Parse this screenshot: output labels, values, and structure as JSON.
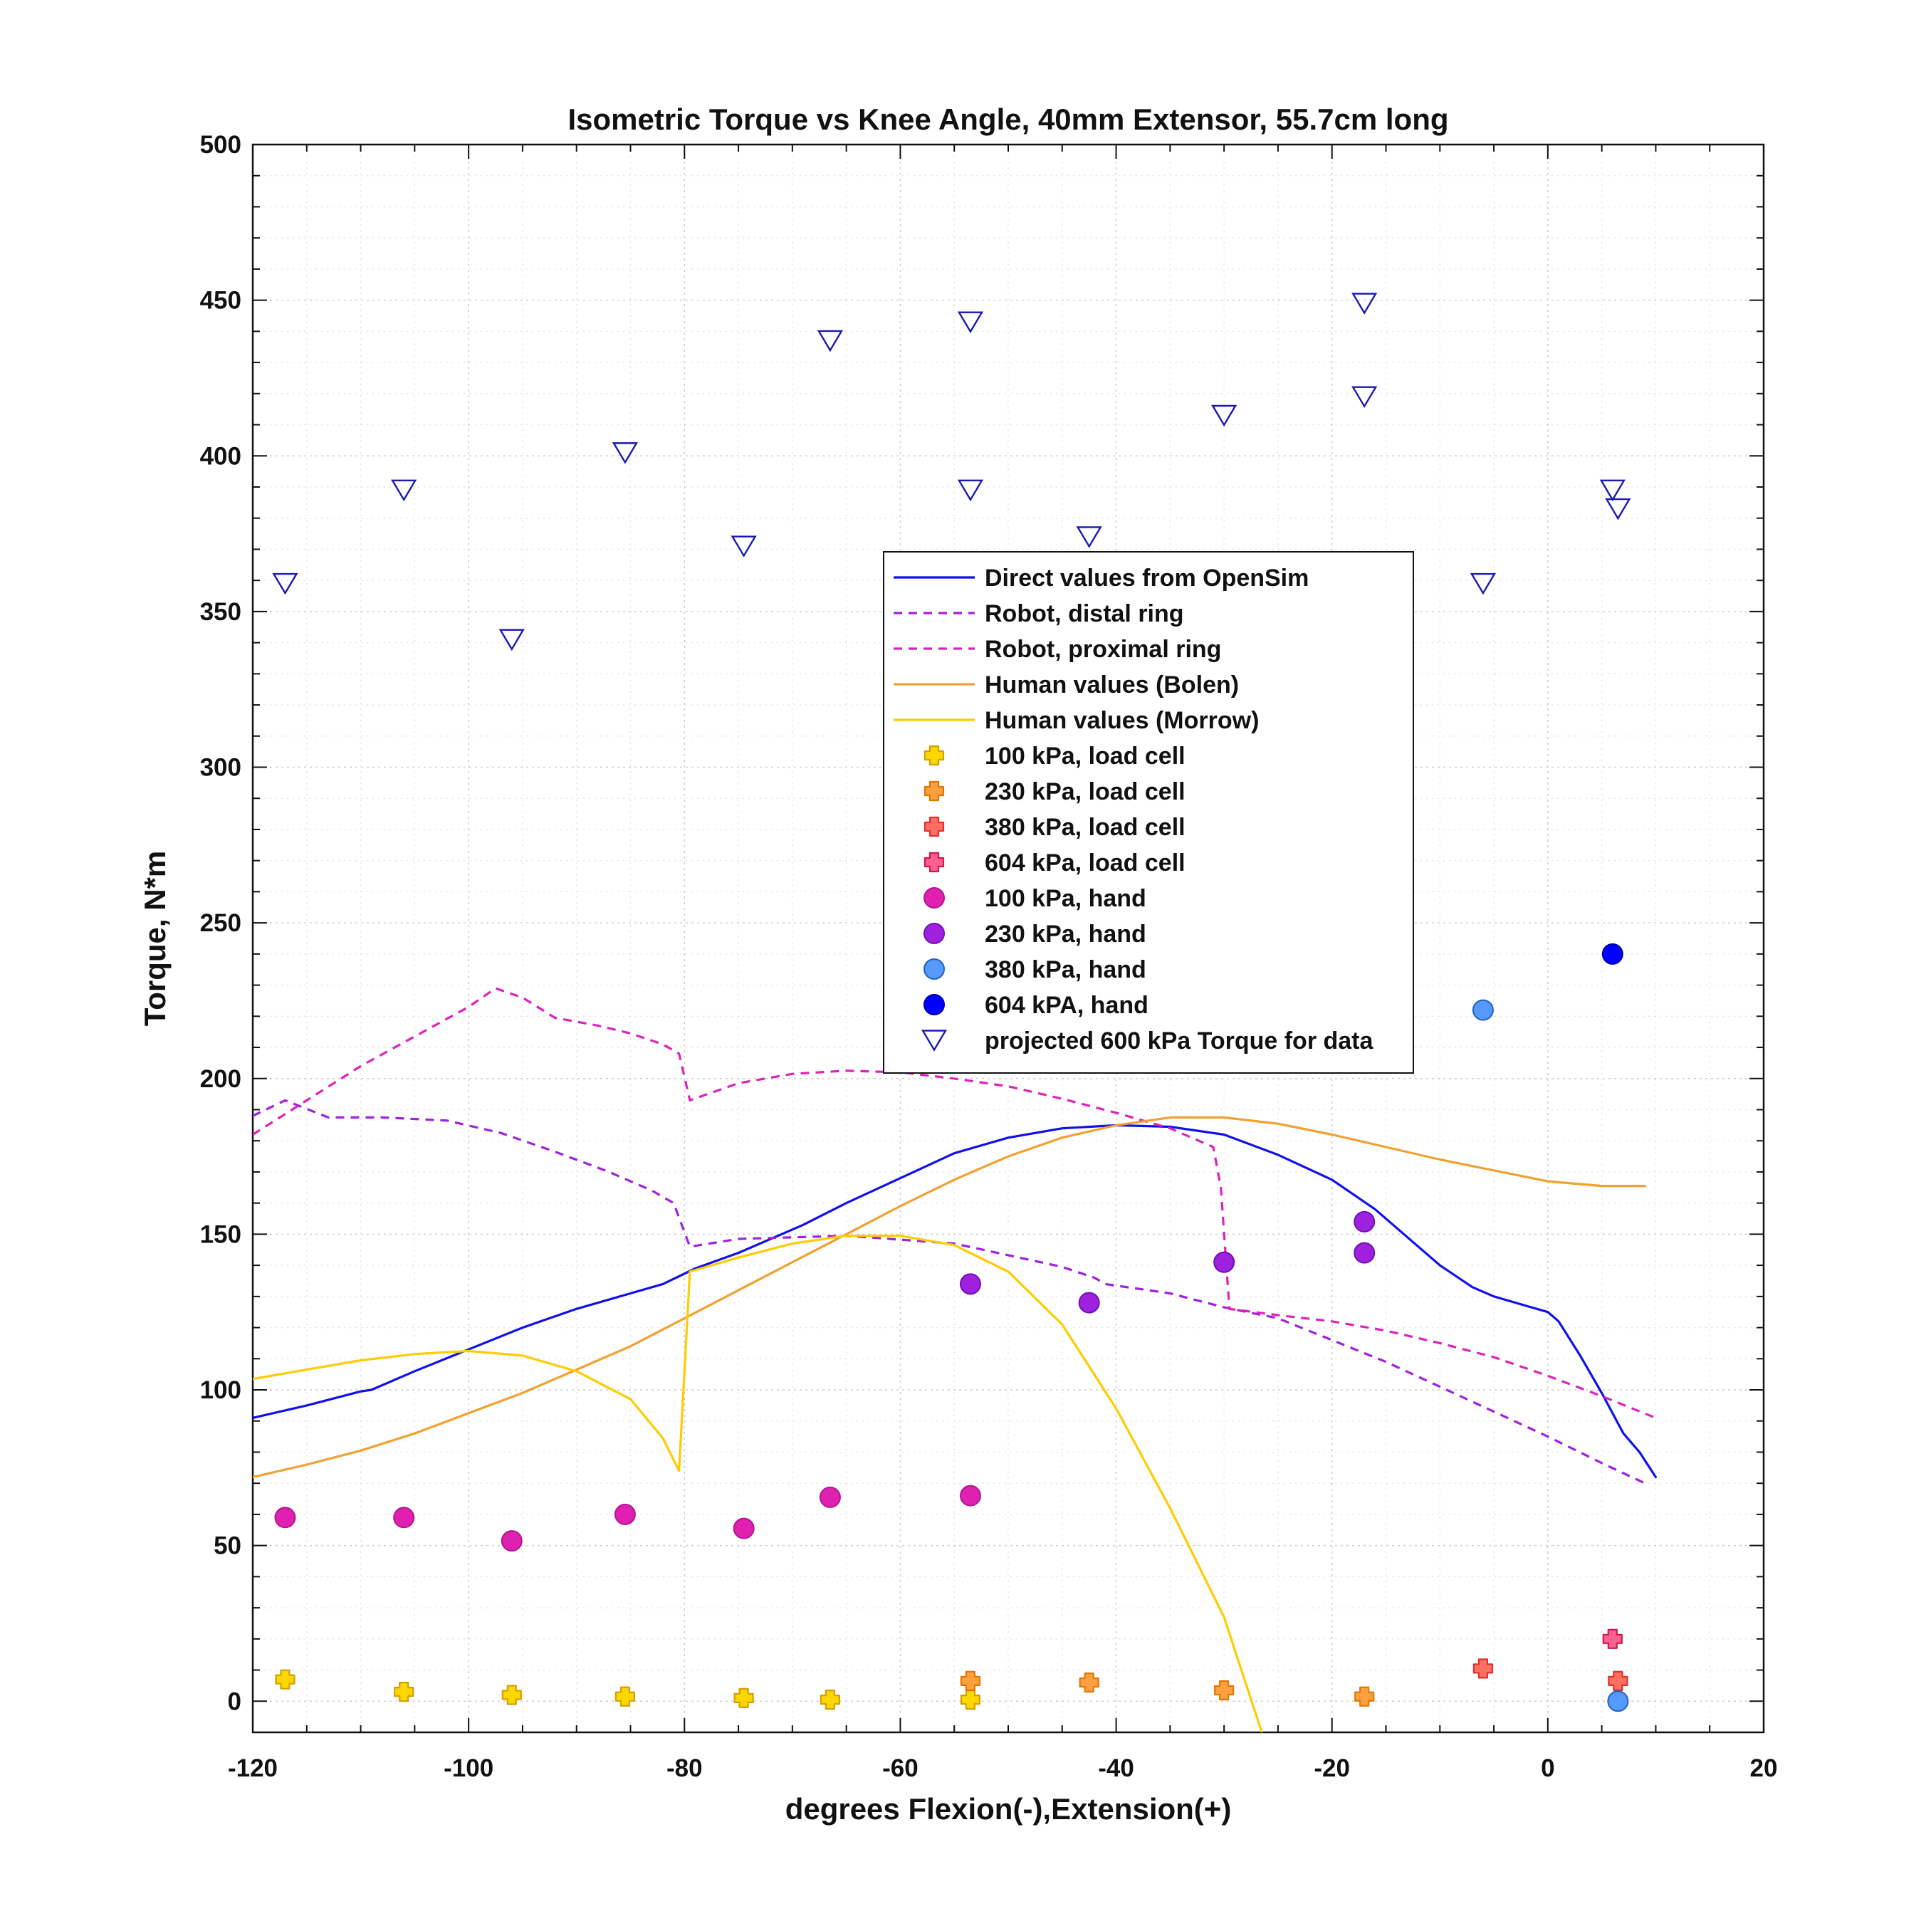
{
  "chart_data": {
    "type": "line",
    "title": "Isometric Torque vs Knee Angle, 40mm Extensor, 55.7cm long",
    "xlabel": "degrees Flexion(-),Extension(+)",
    "ylabel": "Torque, N*m",
    "xlim": [
      -120,
      20
    ],
    "ylim": [
      -10,
      500
    ],
    "xticks": [
      -120,
      -100,
      -80,
      -60,
      -40,
      -20,
      0,
      20
    ],
    "yticks": [
      0,
      50,
      100,
      150,
      200,
      250,
      300,
      350,
      400,
      450,
      500
    ],
    "xtick_labels": [
      "-120",
      "-100",
      "-80",
      "-60",
      "-40",
      "-20",
      "0",
      "20"
    ],
    "ytick_labels": [
      "0",
      "50",
      "100",
      "150",
      "200",
      "250",
      "300",
      "350",
      "400",
      "450",
      "500"
    ],
    "grid": true,
    "minor_grid": true,
    "legend_position": "center-right",
    "series": [
      {
        "name": "Direct values from OpenSim",
        "kind": "line",
        "style": "solid",
        "color": "#1010ee",
        "points": [
          [
            -120,
            91
          ],
          [
            -115,
            95
          ],
          [
            -110,
            99.5
          ],
          [
            -109,
            100
          ],
          [
            -105,
            106
          ],
          [
            -100,
            113
          ],
          [
            -95,
            120
          ],
          [
            -90,
            126
          ],
          [
            -85,
            131
          ],
          [
            -82,
            134
          ],
          [
            -79,
            139
          ],
          [
            -75,
            144
          ],
          [
            -69,
            153
          ],
          [
            -65,
            160
          ],
          [
            -60,
            168
          ],
          [
            -55,
            176
          ],
          [
            -50,
            181
          ],
          [
            -45,
            184
          ],
          [
            -40,
            185
          ],
          [
            -35,
            184.5
          ],
          [
            -30,
            182
          ],
          [
            -25,
            175.5
          ],
          [
            -20,
            167.5
          ],
          [
            -16,
            158
          ],
          [
            -12,
            146
          ],
          [
            -10,
            140
          ],
          [
            -7,
            133
          ],
          [
            -5,
            130
          ],
          [
            -2,
            127
          ],
          [
            0,
            125
          ],
          [
            1,
            122
          ],
          [
            3,
            111
          ],
          [
            5,
            99
          ],
          [
            7,
            86
          ],
          [
            8.5,
            80
          ],
          [
            10,
            72
          ]
        ]
      },
      {
        "name": "Robot, distal ring",
        "kind": "line",
        "style": "dashed",
        "color": "#a020e0",
        "points": [
          [
            -120,
            188
          ],
          [
            -117,
            193
          ],
          [
            -113,
            187.5
          ],
          [
            -108,
            187.5
          ],
          [
            -102,
            186.5
          ],
          [
            -97,
            182.5
          ],
          [
            -92,
            176.5
          ],
          [
            -87,
            170
          ],
          [
            -83,
            164
          ],
          [
            -81,
            160
          ],
          [
            -79.5,
            146
          ],
          [
            -75,
            148.5
          ],
          [
            -65,
            149.5
          ],
          [
            -55,
            147
          ],
          [
            -45,
            139.5
          ],
          [
            -42,
            136
          ],
          [
            -41,
            134
          ],
          [
            -35,
            131
          ],
          [
            -30,
            126.5
          ],
          [
            -25,
            123
          ],
          [
            -20,
            116
          ],
          [
            -15,
            109
          ],
          [
            -10,
            101
          ],
          [
            -5,
            93
          ],
          [
            0,
            85
          ],
          [
            5,
            76.5
          ],
          [
            9,
            70
          ]
        ]
      },
      {
        "name": "Robot, proximal ring",
        "kind": "line",
        "style": "dashed",
        "color": "#dd22bb",
        "points": [
          [
            -120,
            182
          ],
          [
            -115,
            193
          ],
          [
            -110,
            204
          ],
          [
            -105,
            213.5
          ],
          [
            -100,
            223
          ],
          [
            -97.5,
            229
          ],
          [
            -95,
            226
          ],
          [
            -92,
            219.5
          ],
          [
            -88,
            217
          ],
          [
            -85,
            214.5
          ],
          [
            -82,
            211
          ],
          [
            -80.5,
            208
          ],
          [
            -79.5,
            193
          ],
          [
            -75,
            198.5
          ],
          [
            -70,
            201.5
          ],
          [
            -65,
            202.5
          ],
          [
            -60,
            202
          ],
          [
            -55,
            200
          ],
          [
            -50,
            197.5
          ],
          [
            -45,
            193.5
          ],
          [
            -40,
            189
          ],
          [
            -35,
            184
          ],
          [
            -31,
            178
          ],
          [
            -30.3,
            165
          ],
          [
            -29.5,
            126
          ],
          [
            -25,
            124
          ],
          [
            -20,
            122
          ],
          [
            -15,
            119
          ],
          [
            -10,
            115
          ],
          [
            -5,
            110.5
          ],
          [
            0,
            104.5
          ],
          [
            5,
            98
          ],
          [
            10,
            91
          ]
        ]
      },
      {
        "name": "Human values (Bolen)",
        "kind": "line",
        "style": "solid",
        "color": "#f2a030",
        "points": [
          [
            -120,
            72
          ],
          [
            -115,
            76
          ],
          [
            -110,
            80.5
          ],
          [
            -105,
            86
          ],
          [
            -100,
            92.5
          ],
          [
            -95,
            99
          ],
          [
            -90,
            106.5
          ],
          [
            -85,
            114
          ],
          [
            -80,
            123
          ],
          [
            -75,
            132
          ],
          [
            -70,
            141
          ],
          [
            -65,
            150
          ],
          [
            -60,
            159
          ],
          [
            -55,
            167.5
          ],
          [
            -50,
            175
          ],
          [
            -45,
            181
          ],
          [
            -40,
            185
          ],
          [
            -35,
            187.5
          ],
          [
            -30,
            187.5
          ],
          [
            -25,
            185.5
          ],
          [
            -20,
            182
          ],
          [
            -15,
            178
          ],
          [
            -10,
            174
          ],
          [
            -5,
            170.5
          ],
          [
            0,
            167
          ],
          [
            5,
            165.5
          ],
          [
            9,
            165.5
          ]
        ]
      },
      {
        "name": "Human values (Morrow)",
        "kind": "line",
        "style": "solid",
        "color": "#ffcc00",
        "points": [
          [
            -120,
            103.5
          ],
          [
            -115,
            106.5
          ],
          [
            -110,
            109.5
          ],
          [
            -105,
            111.5
          ],
          [
            -100,
            112.5
          ],
          [
            -95,
            111
          ],
          [
            -90,
            106
          ],
          [
            -85,
            97
          ],
          [
            -82,
            84.5
          ],
          [
            -80.5,
            74
          ],
          [
            -79.5,
            138
          ],
          [
            -75,
            142.5
          ],
          [
            -70,
            147
          ],
          [
            -65,
            149.5
          ],
          [
            -60,
            149.5
          ],
          [
            -55,
            146.5
          ],
          [
            -50,
            138
          ],
          [
            -45,
            121
          ],
          [
            -40,
            94
          ],
          [
            -35,
            62
          ],
          [
            -30,
            27
          ],
          [
            -26.5,
            -10
          ]
        ]
      },
      {
        "name": "100 kPa, load cell",
        "kind": "scatter",
        "marker": "plus",
        "color": "#ffd700",
        "edge": "#d4a000",
        "points": [
          [
            -117,
            7
          ],
          [
            -106,
            3
          ],
          [
            -96,
            2
          ],
          [
            -85.5,
            1.5
          ],
          [
            -74.5,
            1
          ],
          [
            -66.5,
            0.5
          ],
          [
            -53.5,
            0.5
          ]
        ]
      },
      {
        "name": "230 kPa, load cell",
        "kind": "scatter",
        "marker": "plus",
        "color": "#ffa040",
        "edge": "#e07800",
        "points": [
          [
            -53.5,
            6.5
          ],
          [
            -42.5,
            6
          ],
          [
            -30,
            3.5
          ],
          [
            -17,
            1.5
          ]
        ]
      },
      {
        "name": "380 kPa, load cell",
        "kind": "scatter",
        "marker": "plus",
        "color": "#ff7060",
        "edge": "#e03030",
        "points": [
          [
            -6,
            10.5
          ],
          [
            6.5,
            6.5
          ]
        ]
      },
      {
        "name": "604 kPa, load cell",
        "kind": "scatter",
        "marker": "plus",
        "color": "#ff6090",
        "edge": "#d01850",
        "points": [
          [
            6,
            20
          ]
        ]
      },
      {
        "name": "100 kPa, hand",
        "kind": "scatter",
        "marker": "circle",
        "color": "#e020b0",
        "edge": "#b01890",
        "points": [
          [
            -117,
            59
          ],
          [
            -106,
            59
          ],
          [
            -96,
            51.5
          ],
          [
            -85.5,
            60
          ],
          [
            -74.5,
            55.5
          ],
          [
            -66.5,
            65.5
          ],
          [
            -53.5,
            66
          ]
        ]
      },
      {
        "name": "230 kPa, hand",
        "kind": "scatter",
        "marker": "circle",
        "color": "#a020e0",
        "edge": "#7010b0",
        "points": [
          [
            -53.5,
            134
          ],
          [
            -42.5,
            128
          ],
          [
            -30,
            141
          ],
          [
            -17,
            154
          ],
          [
            -17,
            144
          ]
        ]
      },
      {
        "name": "380 kPa, hand",
        "kind": "scatter",
        "marker": "circle",
        "color": "#5599ff",
        "edge": "#2060c0",
        "points": [
          [
            -6,
            222
          ],
          [
            6.5,
            0
          ]
        ]
      },
      {
        "name": "604 kPA, hand",
        "kind": "scatter",
        "marker": "circle",
        "color": "#0000ff",
        "edge": "#0000aa",
        "points": [
          [
            6,
            240
          ]
        ]
      },
      {
        "name": "projected 600 kPa Torque for data",
        "kind": "scatter",
        "marker": "triangle-down",
        "color": "#1a1ab0",
        "points": [
          [
            -117,
            359
          ],
          [
            -106,
            389
          ],
          [
            -96,
            341
          ],
          [
            -85.5,
            401
          ],
          [
            -74.5,
            371
          ],
          [
            -66.5,
            437
          ],
          [
            -53.5,
            443
          ],
          [
            -53.5,
            389
          ],
          [
            -42.5,
            374
          ],
          [
            -30,
            413
          ],
          [
            -17,
            449
          ],
          [
            -17,
            419
          ],
          [
            -6,
            359
          ],
          [
            6,
            389
          ],
          [
            6.5,
            383
          ]
        ]
      }
    ]
  }
}
